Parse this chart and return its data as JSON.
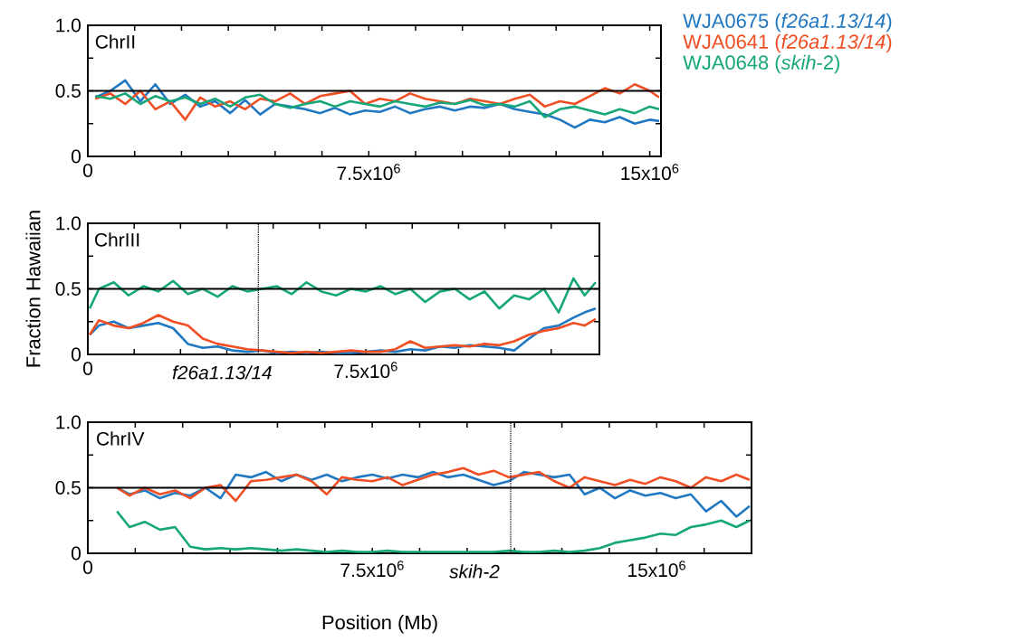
{
  "chart_data": [
    {
      "type": "line",
      "title": "ChrII",
      "legend": "top right",
      "xlim": [
        0,
        15300000
      ],
      "ylim": [
        0,
        1
      ],
      "xticks": [
        0,
        {
          "value": 1250000,
          "label": null
        },
        {
          "value": 2500000,
          "label": null
        },
        {
          "value": 3750000,
          "label": null
        },
        {
          "value": 5000000,
          "label": null
        },
        {
          "value": 6250000,
          "label": null
        },
        {
          "value": 7500000,
          "label": "7.5x10$^{6}$"
        },
        {
          "value": 8750000,
          "label": null
        },
        {
          "value": 10000000,
          "label": null
        },
        {
          "value": 11250000,
          "label": null
        },
        {
          "value": 12500000,
          "label": null
        },
        {
          "value": 13750000,
          "label": null
        },
        {
          "value": 15000000,
          "label": "15x10$^{6}$"
        }
      ],
      "yticks": [
        0,
        {
          "value": 0.25,
          "label": null
        },
        0.5,
        {
          "value": 0.75,
          "label": null
        },
        {
          "value": 1,
          "label": "1.0"
        }
      ],
      "ref_lines": [
        {
          "axis": "y",
          "value": 0.5,
          "color": "#000000",
          "line_style": "solid"
        }
      ],
      "x": [
        200000,
        600000,
        1000000,
        1400000,
        1800000,
        2200000,
        2600000,
        3000000,
        3400000,
        3800000,
        4200000,
        4600000,
        5000000,
        5400000,
        5800000,
        6200000,
        6600000,
        7000000,
        7400000,
        7800000,
        8200000,
        8600000,
        9000000,
        9400000,
        9800000,
        10200000,
        10600000,
        11000000,
        11400000,
        11800000,
        12200000,
        12600000,
        13000000,
        13400000,
        13800000,
        14200000,
        14600000,
        15000000,
        15250000
      ],
      "series": [
        {
          "name": "WJA0675 (*f26a1.13/14*)",
          "color": "#1f78c1",
          "values": [
            0.45,
            0.5,
            0.58,
            0.42,
            0.55,
            0.4,
            0.47,
            0.38,
            0.42,
            0.33,
            0.43,
            0.32,
            0.4,
            0.38,
            0.36,
            0.33,
            0.37,
            0.32,
            0.35,
            0.34,
            0.38,
            0.33,
            0.36,
            0.38,
            0.35,
            0.38,
            0.37,
            0.4,
            0.36,
            0.34,
            0.32,
            0.28,
            0.22,
            0.28,
            0.26,
            0.3,
            0.25,
            0.28,
            0.27
          ]
        },
        {
          "name": "WJA0641 (*f26a1.13/14*)",
          "color": "#f04e23",
          "values": [
            0.44,
            0.48,
            0.4,
            0.5,
            0.36,
            0.42,
            0.28,
            0.45,
            0.38,
            0.42,
            0.36,
            0.44,
            0.42,
            0.48,
            0.4,
            0.46,
            0.48,
            0.5,
            0.4,
            0.44,
            0.42,
            0.48,
            0.44,
            0.42,
            0.4,
            0.44,
            0.42,
            0.4,
            0.44,
            0.47,
            0.38,
            0.42,
            0.4,
            0.46,
            0.52,
            0.48,
            0.55,
            0.5,
            0.45
          ]
        },
        {
          "name": "WJA0648 (*skih*-2)",
          "color": "#15a679",
          "values": [
            0.46,
            0.44,
            0.48,
            0.4,
            0.46,
            0.42,
            0.45,
            0.4,
            0.44,
            0.38,
            0.45,
            0.47,
            0.4,
            0.37,
            0.4,
            0.42,
            0.38,
            0.42,
            0.4,
            0.38,
            0.42,
            0.4,
            0.38,
            0.41,
            0.4,
            0.43,
            0.39,
            0.4,
            0.38,
            0.42,
            0.3,
            0.36,
            0.38,
            0.35,
            0.32,
            0.36,
            0.33,
            0.38,
            0.36
          ]
        }
      ]
    },
    {
      "type": "line",
      "title": "ChrIII",
      "ylabel": "Fraction Hawaiian",
      "xlim": [
        0,
        13800000
      ],
      "ylim": [
        0,
        1
      ],
      "xticks": [
        0,
        {
          "value": 1250000,
          "label": null
        },
        {
          "value": 2500000,
          "label": null
        },
        {
          "value": 3750000,
          "label": null
        },
        {
          "value": 5000000,
          "label": null
        },
        {
          "value": 6250000,
          "label": null
        },
        {
          "value": 7500000,
          "label": "7.5x10$^{6}$"
        },
        {
          "value": 8750000,
          "label": null
        },
        {
          "value": 10000000,
          "label": null
        },
        {
          "value": 11250000,
          "label": null
        },
        {
          "value": 12500000,
          "label": null
        }
      ],
      "yticks": [
        0,
        {
          "value": 0.25,
          "label": null
        },
        0.5,
        {
          "value": 0.75,
          "label": null
        },
        {
          "value": 1,
          "label": "1.0"
        }
      ],
      "ref_lines": [
        {
          "axis": "y",
          "value": 0.5,
          "color": "#000000",
          "line_style": "solid"
        },
        {
          "axis": "x",
          "value": 4600000,
          "label": "f26a1.13/14",
          "color": "#000000",
          "line_style": "dotted"
        }
      ],
      "x": [
        50000,
        300000,
        700000,
        1100000,
        1500000,
        1900000,
        2300000,
        2700000,
        3100000,
        3500000,
        3900000,
        4300000,
        4700000,
        5100000,
        5500000,
        5900000,
        6300000,
        6700000,
        7100000,
        7500000,
        7900000,
        8300000,
        8700000,
        9100000,
        9500000,
        9900000,
        10300000,
        10700000,
        11100000,
        11500000,
        11900000,
        12300000,
        12700000,
        13100000,
        13400000,
        13700000
      ],
      "series": [
        {
          "color": "#1f78c1",
          "values": [
            0.15,
            0.22,
            0.25,
            0.2,
            0.22,
            0.24,
            0.2,
            0.08,
            0.05,
            0.06,
            0.03,
            0.02,
            0.03,
            0.01,
            0.02,
            0.01,
            0.02,
            0.01,
            0.01,
            0.02,
            0.03,
            0.02,
            0.04,
            0.03,
            0.06,
            0.05,
            0.07,
            0.06,
            0.05,
            0.03,
            0.12,
            0.2,
            0.22,
            0.28,
            0.32,
            0.35
          ]
        },
        {
          "color": "#f04e23",
          "values": [
            0.15,
            0.26,
            0.22,
            0.2,
            0.24,
            0.3,
            0.25,
            0.22,
            0.12,
            0.08,
            0.06,
            0.04,
            0.03,
            0.02,
            0.01,
            0.02,
            0.01,
            0.02,
            0.03,
            0.02,
            0.02,
            0.04,
            0.1,
            0.05,
            0.06,
            0.07,
            0.06,
            0.08,
            0.07,
            0.1,
            0.15,
            0.18,
            0.2,
            0.24,
            0.22,
            0.27
          ]
        },
        {
          "color": "#15a679",
          "values": [
            0.35,
            0.5,
            0.55,
            0.45,
            0.52,
            0.48,
            0.56,
            0.46,
            0.5,
            0.44,
            0.52,
            0.48,
            0.5,
            0.52,
            0.46,
            0.55,
            0.48,
            0.45,
            0.5,
            0.48,
            0.52,
            0.46,
            0.5,
            0.4,
            0.48,
            0.5,
            0.42,
            0.48,
            0.35,
            0.45,
            0.42,
            0.5,
            0.32,
            0.58,
            0.45,
            0.55
          ]
        }
      ]
    },
    {
      "type": "line",
      "title": "ChrIV",
      "xlabel": "Position (Mb)",
      "xlim": [
        0,
        17500000
      ],
      "ylim": [
        0,
        1
      ],
      "xticks": [
        0,
        {
          "value": 1250000,
          "label": null
        },
        {
          "value": 2500000,
          "label": null
        },
        {
          "value": 3750000,
          "label": null
        },
        {
          "value": 5000000,
          "label": null
        },
        {
          "value": 6250000,
          "label": null
        },
        {
          "value": 7500000,
          "label": "7.5x10$^{6}$"
        },
        {
          "value": 8750000,
          "label": null
        },
        {
          "value": 10000000,
          "label": null
        },
        {
          "value": 11250000,
          "label": null
        },
        {
          "value": 12500000,
          "label": null
        },
        {
          "value": 13750000,
          "label": null
        },
        {
          "value": 15000000,
          "label": "15x10$^{6}$"
        },
        {
          "value": 16250000,
          "label": null
        }
      ],
      "yticks": [
        0,
        {
          "value": 0.25,
          "label": null
        },
        0.5,
        {
          "value": 0.75,
          "label": null
        },
        {
          "value": 1,
          "label": "1.0"
        }
      ],
      "ref_lines": [
        {
          "axis": "y",
          "value": 0.5,
          "color": "#000000",
          "line_style": "solid"
        },
        {
          "axis": "x",
          "value": 11150000,
          "label": "skih-2",
          "color": "#000000",
          "line_style": "dotted"
        }
      ],
      "x": [
        770000,
        1100000,
        1500000,
        1900000,
        2300000,
        2700000,
        3100000,
        3500000,
        3900000,
        4300000,
        4700000,
        5100000,
        5500000,
        5900000,
        6300000,
        6700000,
        7100000,
        7500000,
        7900000,
        8300000,
        8700000,
        9100000,
        9500000,
        9900000,
        10300000,
        10700000,
        11100000,
        11500000,
        11900000,
        12300000,
        12700000,
        13100000,
        13500000,
        13900000,
        14300000,
        14700000,
        15100000,
        15500000,
        15900000,
        16300000,
        16700000,
        17100000,
        17450000
      ],
      "series": [
        {
          "color": "#1f78c1",
          "values": [
            0.5,
            0.45,
            0.48,
            0.42,
            0.46,
            0.44,
            0.5,
            0.42,
            0.6,
            0.58,
            0.62,
            0.55,
            0.6,
            0.56,
            0.6,
            0.55,
            0.58,
            0.6,
            0.57,
            0.6,
            0.58,
            0.62,
            0.58,
            0.6,
            0.56,
            0.52,
            0.55,
            0.62,
            0.6,
            0.58,
            0.6,
            0.45,
            0.5,
            0.42,
            0.48,
            0.44,
            0.46,
            0.42,
            0.45,
            0.32,
            0.4,
            0.28,
            0.36
          ]
        },
        {
          "color": "#f04e23",
          "values": [
            0.5,
            0.44,
            0.5,
            0.45,
            0.48,
            0.42,
            0.5,
            0.52,
            0.4,
            0.55,
            0.56,
            0.58,
            0.6,
            0.55,
            0.45,
            0.58,
            0.56,
            0.55,
            0.58,
            0.52,
            0.56,
            0.6,
            0.62,
            0.65,
            0.6,
            0.63,
            0.58,
            0.6,
            0.62,
            0.55,
            0.5,
            0.58,
            0.55,
            0.52,
            0.56,
            0.53,
            0.58,
            0.55,
            0.5,
            0.58,
            0.55,
            0.6,
            0.56
          ]
        },
        {
          "color": "#15a679",
          "values": [
            0.32,
            0.2,
            0.24,
            0.18,
            0.2,
            0.05,
            0.03,
            0.04,
            0.03,
            0.04,
            0.03,
            0.02,
            0.03,
            0.02,
            0.01,
            0.02,
            0.01,
            0.01,
            0.02,
            0.01,
            0.01,
            0.01,
            0.01,
            0.01,
            0.01,
            0.01,
            0.02,
            0.01,
            0.01,
            0.02,
            0.01,
            0.02,
            0.04,
            0.08,
            0.1,
            0.12,
            0.15,
            0.14,
            0.2,
            0.22,
            0.25,
            0.2,
            0.25
          ]
        }
      ]
    }
  ]
}
